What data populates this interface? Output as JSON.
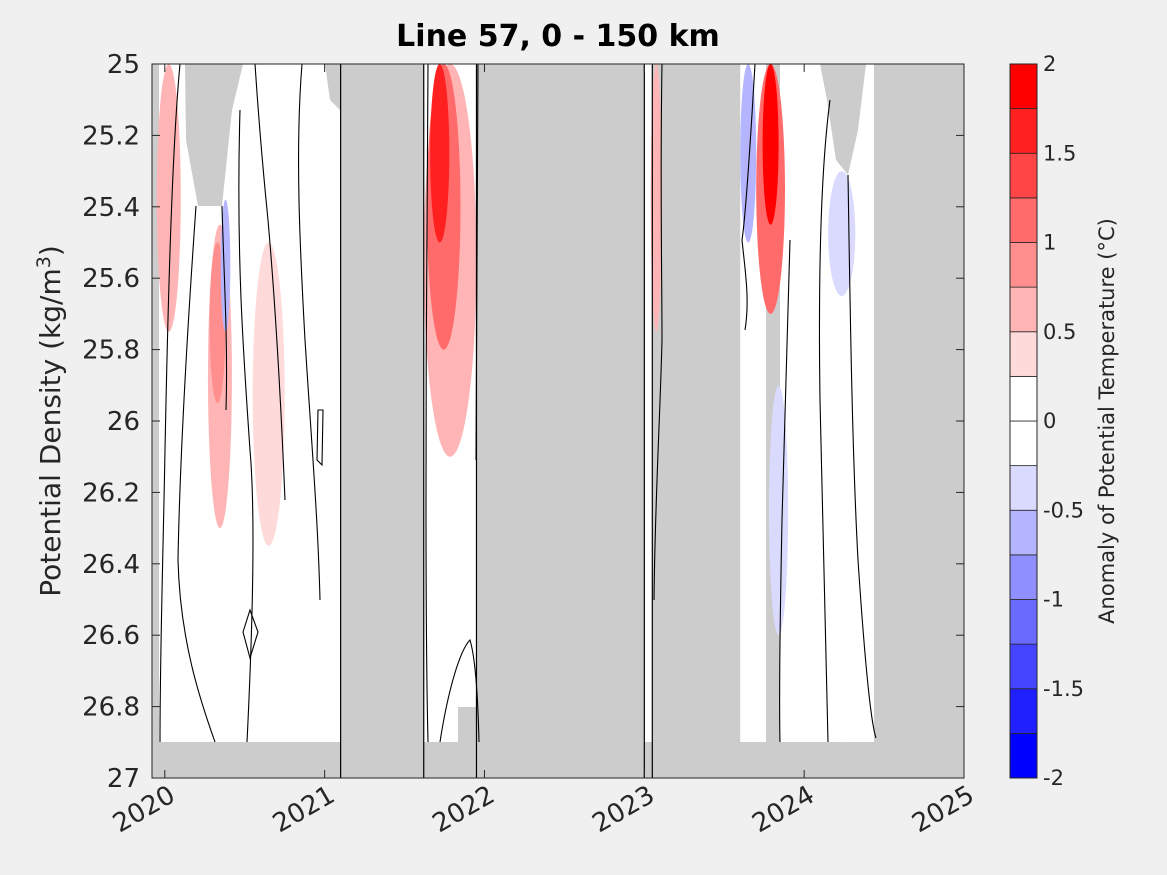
{
  "chart_data": {
    "type": "heatmap",
    "title": "Line 57, 0 - 150 km",
    "ylabel_main": "Potential Density (kg/m",
    "ylabel_sup": "3",
    "ylabel_end": ")",
    "ylim": [
      25,
      27
    ],
    "yreversed": true,
    "y_ticks": [
      25,
      25.2,
      25.4,
      25.6,
      25.8,
      26,
      26.2,
      26.4,
      26.6,
      26.8,
      27
    ],
    "y_tick_labels": [
      "25",
      "25.2",
      "25.4",
      "25.6",
      "25.8",
      "26",
      "26.2",
      "26.4",
      "26.6",
      "26.8",
      "27"
    ],
    "xlim": [
      2019.92,
      2025.0
    ],
    "x_ticks": [
      2020,
      2021,
      2022,
      2023,
      2024,
      2025
    ],
    "x_tick_labels": [
      "2020",
      "2021",
      "2022",
      "2023",
      "2024",
      "2025"
    ],
    "colorbar": {
      "label": "Anomaly of Potential Temperature (°C)",
      "range": [
        -2,
        2
      ],
      "levels": [
        -2,
        -1.75,
        -1.5,
        -1.25,
        -1,
        -0.75,
        -0.5,
        -0.25,
        0,
        0.25,
        0.5,
        0.75,
        1,
        1.25,
        1.5,
        1.75,
        2
      ],
      "tick_values": [
        -2,
        -1.5,
        -1,
        -0.5,
        0,
        0.5,
        1,
        1.5,
        2
      ],
      "tick_labels": [
        "-2",
        "-1.5",
        "-1",
        "-0.5",
        "0",
        "0.5",
        "1",
        "1.5",
        "2"
      ],
      "colors": [
        "#0000ff",
        "#2020ff",
        "#4545ff",
        "#6a6aff",
        "#8f8fff",
        "#b5b5ff",
        "#dadaff",
        "#ffffff",
        "#ffffff",
        "#ffdada",
        "#ffb5b5",
        "#ff8f8f",
        "#ff6a6a",
        "#ff4545",
        "#ff2020",
        "#ff0000"
      ]
    },
    "no_data_color": "#cccccc",
    "no_data_periods": [
      [
        2021.1,
        2021.62
      ],
      [
        2021.95,
        2023.0
      ],
      [
        2023.05,
        2023.6
      ]
    ],
    "survey_lines": [
      2021.1,
      2021.62,
      2021.95,
      2023.0,
      2023.05
    ],
    "anomaly_features": [
      {
        "x": [
          2019.95,
          2020.1
        ],
        "y": [
          25.0,
          25.75
        ],
        "value": 0.5
      },
      {
        "x": [
          2020.27,
          2020.42
        ],
        "y": [
          25.45,
          26.3
        ],
        "value": 0.5
      },
      {
        "x": [
          2020.28,
          2020.38
        ],
        "y": [
          25.5,
          25.95
        ],
        "value": 0.75
      },
      {
        "x": [
          2020.35,
          2020.41
        ],
        "y": [
          25.38,
          25.75
        ],
        "value": -0.75
      },
      {
        "x": [
          2020.55,
          2020.75
        ],
        "y": [
          25.5,
          26.35
        ],
        "value": 0.25
      },
      {
        "x": [
          2021.62,
          2021.95
        ],
        "y": [
          25.0,
          26.1
        ],
        "value": 0.5
      },
      {
        "x": [
          2021.64,
          2021.85
        ],
        "y": [
          25.0,
          25.8
        ],
        "value": 1.0
      },
      {
        "x": [
          2021.66,
          2021.78
        ],
        "y": [
          25.0,
          25.5
        ],
        "value": 1.5
      },
      {
        "x": [
          2023.04,
          2023.11
        ],
        "y": [
          25.0,
          25.75
        ],
        "value": 0.5
      },
      {
        "x": [
          2023.6,
          2023.7
        ],
        "y": [
          25.0,
          25.5
        ],
        "value": -0.75
      },
      {
        "x": [
          2023.7,
          2023.88
        ],
        "y": [
          25.0,
          25.7
        ],
        "value": 1.0
      },
      {
        "x": [
          2023.74,
          2023.84
        ],
        "y": [
          25.0,
          25.45
        ],
        "value": 1.75
      },
      {
        "x": [
          2023.78,
          2023.9
        ],
        "y": [
          25.9,
          26.6
        ],
        "value": -0.5
      },
      {
        "x": [
          2024.15,
          2024.32
        ],
        "y": [
          25.3,
          25.65
        ],
        "value": -0.5
      },
      {
        "x": [
          2024.18,
          2024.32
        ],
        "y": [
          26.7,
          26.9
        ],
        "value": -0.25
      }
    ]
  }
}
